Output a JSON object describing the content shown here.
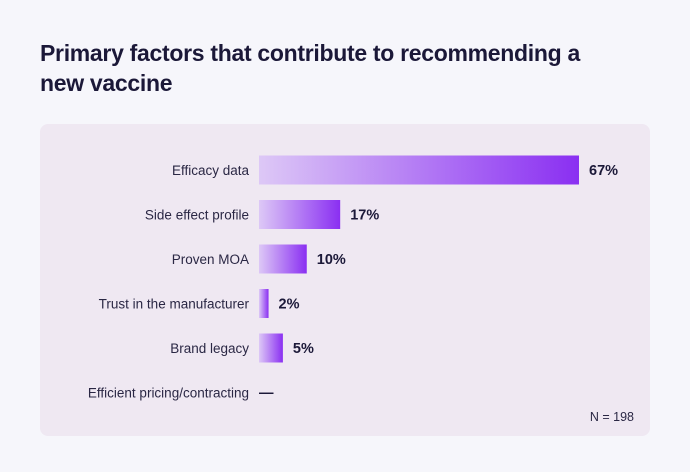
{
  "chart_data": {
    "type": "bar",
    "orientation": "horizontal",
    "title": "Primary factors that contribute to recommending a new vaccine",
    "categories": [
      "Efficacy data",
      "Side effect profile",
      "Proven MOA",
      "Trust in the manufacturer",
      "Brand legacy",
      "Efficient pricing/contracting"
    ],
    "values": [
      67,
      17,
      10,
      2,
      5,
      null
    ],
    "value_labels": [
      "67%",
      "17%",
      "10%",
      "2%",
      "5%",
      "—"
    ],
    "unit": "%",
    "note": "N = 198",
    "grid": false,
    "colors": {
      "bar_start": "#ddc8f6",
      "bar_end": "#8a2ff2"
    }
  }
}
